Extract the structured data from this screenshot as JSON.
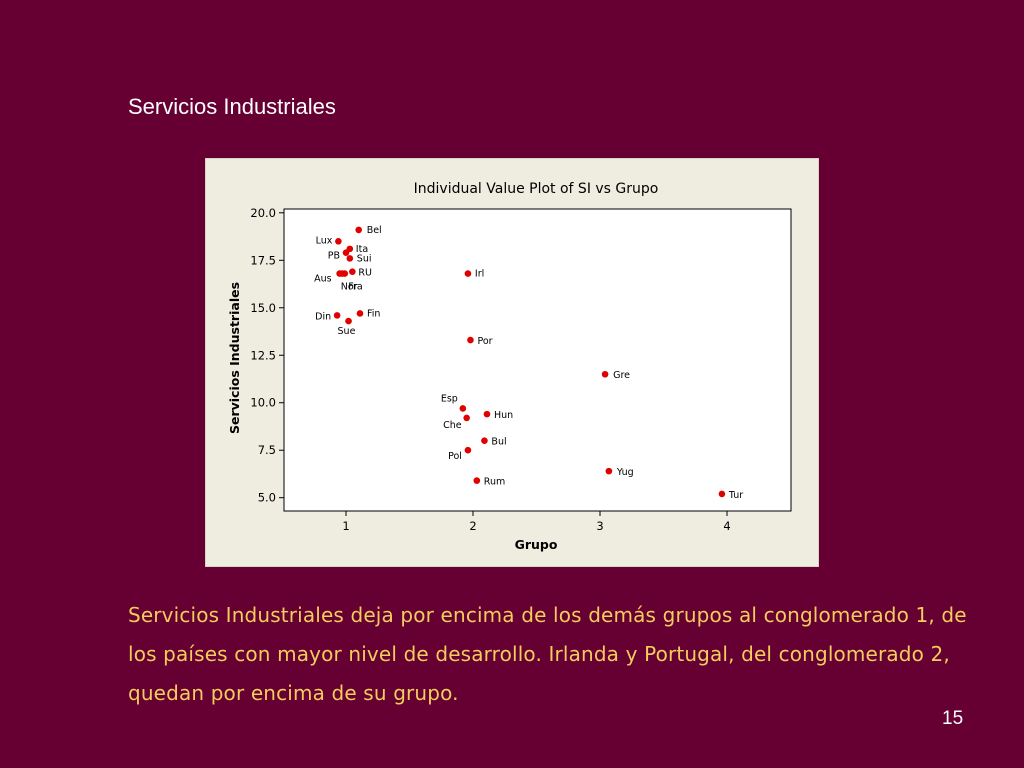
{
  "slide": {
    "title": "Servicios Industriales",
    "body": "Servicios Industriales deja por encima de los demás grupos al conglomerado 1, de los países con mayor nivel de desarrollo. Irlanda y Portugal, del conglomerado 2, quedan por encima de su grupo.",
    "page_number": "15"
  },
  "colors": {
    "background": "#660033",
    "body_text": "#f2cc5c",
    "points": "#e00000",
    "figure_background": "#efece0"
  },
  "chart_data": {
    "type": "scatter",
    "title": "Individual Value Plot of SI vs Grupo",
    "xlabel": "Grupo",
    "ylabel": "Servicios Industriales",
    "xticks": [
      "1",
      "2",
      "3",
      "4"
    ],
    "yticks": [
      "5.0",
      "7.5",
      "10.0",
      "12.5",
      "15.0",
      "17.5",
      "20.0"
    ],
    "ylim": [
      4.3,
      20.2
    ],
    "grid": false,
    "legend": "none",
    "points": [
      {
        "label": "Bel",
        "group": 1,
        "x": 1.1,
        "y": 19.1
      },
      {
        "label": "Lux",
        "group": 1,
        "x": 0.94,
        "y": 18.5
      },
      {
        "label": "Ita",
        "group": 1,
        "x": 1.03,
        "y": 18.1
      },
      {
        "label": "PB",
        "group": 1,
        "x": 1.0,
        "y": 17.9
      },
      {
        "label": "Sui",
        "group": 1,
        "x": 1.03,
        "y": 17.6
      },
      {
        "label": "RU",
        "group": 1,
        "x": 1.05,
        "y": 16.9
      },
      {
        "label": "Aus",
        "group": 1,
        "x": 0.95,
        "y": 16.8
      },
      {
        "label": "Nor",
        "group": 1,
        "x": 0.99,
        "y": 16.8
      },
      {
        "label": "Fra",
        "group": 1,
        "x": 0.97,
        "y": 16.8
      },
      {
        "label": "Fin",
        "group": 1,
        "x": 1.11,
        "y": 14.7
      },
      {
        "label": "Din",
        "group": 1,
        "x": 0.93,
        "y": 14.6
      },
      {
        "label": "Sue",
        "group": 1,
        "x": 1.02,
        "y": 14.3
      },
      {
        "label": "Irl",
        "group": 2,
        "x": 1.96,
        "y": 16.8
      },
      {
        "label": "Por",
        "group": 2,
        "x": 1.98,
        "y": 13.3
      },
      {
        "label": "Esp",
        "group": 2,
        "x": 1.92,
        "y": 9.7
      },
      {
        "label": "Hun",
        "group": 2,
        "x": 2.11,
        "y": 9.4
      },
      {
        "label": "Che",
        "group": 2,
        "x": 1.95,
        "y": 9.2
      },
      {
        "label": "Bul",
        "group": 2,
        "x": 2.09,
        "y": 8.0
      },
      {
        "label": "Pol",
        "group": 2,
        "x": 1.96,
        "y": 7.5
      },
      {
        "label": "Rum",
        "group": 2,
        "x": 2.03,
        "y": 5.9
      },
      {
        "label": "Gre",
        "group": 3,
        "x": 3.04,
        "y": 11.5
      },
      {
        "label": "Yug",
        "group": 3,
        "x": 3.07,
        "y": 6.4
      },
      {
        "label": "Tur",
        "group": 4,
        "x": 3.96,
        "y": 5.2
      }
    ]
  }
}
